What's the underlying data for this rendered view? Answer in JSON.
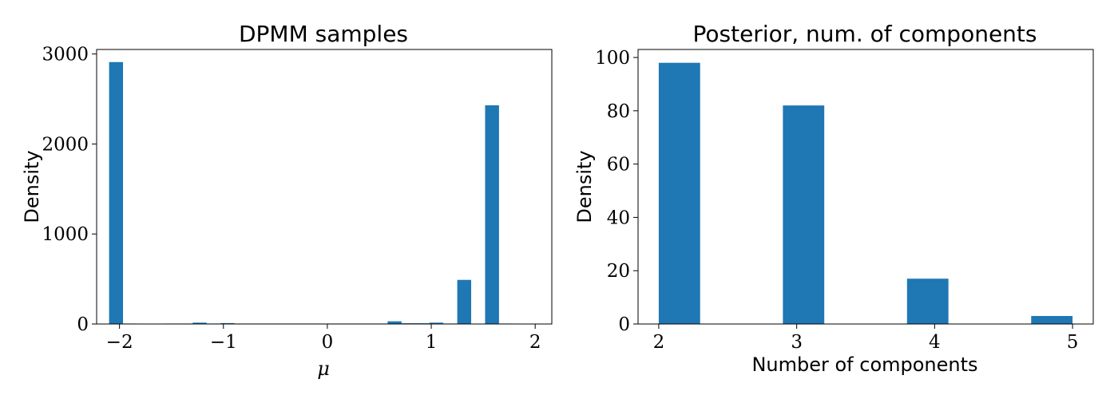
{
  "colors": {
    "bar": "#1f77b4"
  },
  "chart_data": [
    {
      "type": "bar",
      "title": "DPMM samples",
      "xlabel": "μ",
      "ylabel": "Density",
      "xlim": [
        -2.22,
        2.16
      ],
      "ylim": [
        0,
        3050
      ],
      "xticks": [
        -2,
        -1,
        0,
        1,
        2
      ],
      "xtick_labels": [
        "−2",
        "−1",
        "0",
        "1",
        "2"
      ],
      "yticks": [
        0,
        1000,
        2000,
        3000
      ],
      "ytick_labels": [
        "0",
        "1000",
        "2000",
        "3000"
      ],
      "bin_edges": [
        -2.1,
        -1.966,
        -1.832,
        -1.698,
        -1.564,
        -1.43,
        -1.296,
        -1.162,
        -1.028,
        -0.894,
        -0.76,
        -0.626,
        -0.492,
        -0.358,
        -0.224,
        -0.09,
        0.044,
        0.178,
        0.312,
        0.446,
        0.58,
        0.714,
        0.848,
        0.982,
        1.116,
        1.25,
        1.384,
        1.518,
        1.652,
        1.786,
        1.92
      ],
      "values": [
        2910,
        5,
        0,
        0,
        5,
        5,
        15,
        5,
        10,
        5,
        5,
        5,
        5,
        5,
        5,
        5,
        5,
        5,
        5,
        5,
        30,
        8,
        8,
        15,
        5,
        490,
        0,
        2430,
        5,
        0
      ]
    },
    {
      "type": "bar",
      "title": "Posterior, num. of components",
      "xlabel": "Number of components",
      "ylabel": "Density",
      "xlim": [
        1.85,
        5.15
      ],
      "ylim": [
        0,
        103
      ],
      "xticks": [
        2,
        3,
        4,
        5
      ],
      "xtick_labels": [
        "2",
        "3",
        "4",
        "5"
      ],
      "yticks": [
        0,
        20,
        40,
        60,
        80,
        100
      ],
      "ytick_labels": [
        "0",
        "20",
        "40",
        "60",
        "80",
        "100"
      ],
      "bin_edges": [
        2.0,
        2.3,
        2.6,
        2.9,
        3.2,
        3.5,
        3.8,
        4.1,
        4.4,
        4.7,
        5.0
      ],
      "values": [
        98,
        0,
        0,
        82,
        0,
        0,
        17,
        0,
        0,
        3
      ]
    }
  ]
}
